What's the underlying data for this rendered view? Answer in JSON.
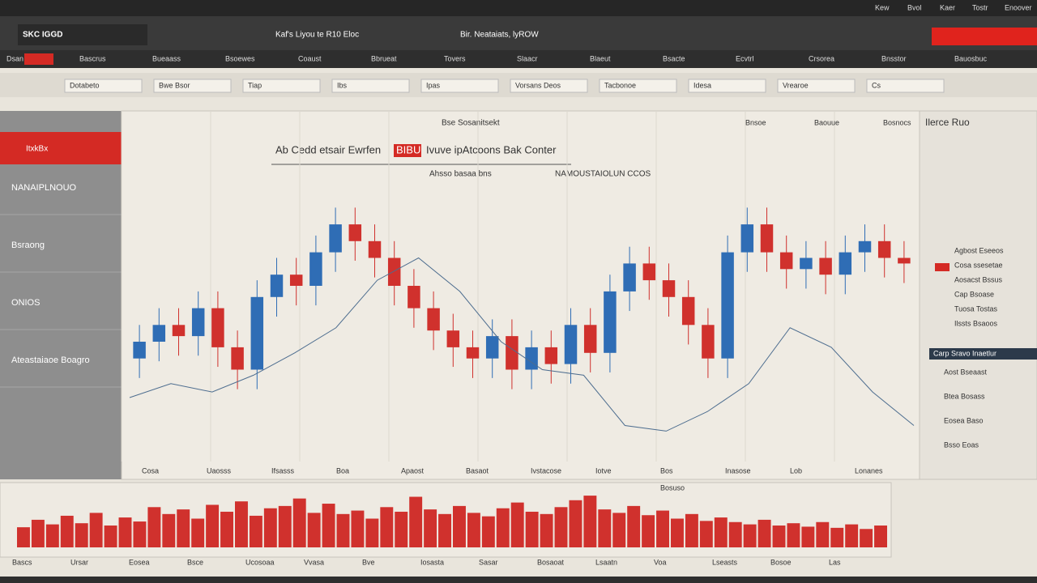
{
  "header": {
    "logo": "SKC IGGD",
    "title": "Kaf's Liyou te R10 Eloc",
    "subtitle": "Bir. Neataiats, lyROW",
    "top_links": [
      "Kew",
      "Bvol",
      "Kaer",
      "Tostr",
      "Enoover"
    ]
  },
  "nav": {
    "items": [
      "Dsan",
      "Bascrus",
      "Bueaass",
      "Bsoewes",
      "Coaust",
      "Bbrueat",
      "Tovers",
      "Slaacr",
      "Blaeut",
      "Bsacte",
      "Ecvtrl",
      "Crsorea",
      "Bnsstor",
      "Bauosbuc"
    ]
  },
  "toolbar": {
    "items": [
      "Dotabeto",
      "Bwe Bsor",
      "Tiap",
      "Ibs",
      "Ipas",
      "Vorsans Deos",
      "Tacbonoe",
      "Idesa",
      "Vrearoe",
      "Cs"
    ]
  },
  "sidebar": {
    "badge": "ItxkBx",
    "items": [
      "NANAIPLNOUO",
      "Bsraong",
      "ONIOS",
      "Ateastaiaoe Boagro"
    ]
  },
  "chart": {
    "top_label": "Bse Sosanitsekt",
    "title": "Ab Cedd etsair Ewrfen",
    "title_highlight": "BIBU",
    "title_rest": "Ivuve ipAtcoons Bak Conter",
    "subtitle_left": "Ahsso basaa bns",
    "subtitle_right": "NAMOUSTAIOLUN CCOS",
    "x_labels": [
      "Cosa",
      "Uaosss",
      "Ifsasss",
      "Boa",
      "Apaost",
      "Basaot",
      "Ivstacose",
      "Iotve",
      "Bos",
      "Inasose",
      "Lob",
      "Lonanes"
    ],
    "ylim": [
      0,
      100
    ],
    "colors": {
      "up": "#2f6db5",
      "down": "#d0312d",
      "line": "#4d6d8f",
      "volume": "#d0312d"
    },
    "candles": {
      "open": [
        34,
        40,
        46,
        42,
        52,
        38,
        30,
        56,
        64,
        60,
        72,
        82,
        76,
        70,
        60,
        52,
        44,
        38,
        34,
        42,
        30,
        38,
        32,
        46,
        36,
        58,
        68,
        62,
        56,
        46,
        34,
        72,
        82,
        72,
        66,
        70,
        64,
        72,
        76,
        70
      ],
      "close": [
        40,
        46,
        42,
        52,
        38,
        30,
        56,
        64,
        60,
        72,
        82,
        76,
        70,
        60,
        52,
        44,
        38,
        34,
        42,
        30,
        38,
        32,
        46,
        36,
        58,
        68,
        62,
        56,
        46,
        34,
        72,
        82,
        72,
        66,
        70,
        64,
        72,
        76,
        70,
        68
      ],
      "high": [
        46,
        52,
        52,
        58,
        58,
        44,
        62,
        70,
        70,
        78,
        88,
        88,
        82,
        76,
        66,
        58,
        50,
        44,
        48,
        48,
        44,
        44,
        52,
        52,
        64,
        74,
        74,
        68,
        62,
        52,
        78,
        88,
        88,
        78,
        76,
        76,
        78,
        82,
        82,
        76
      ],
      "low": [
        27,
        33,
        35,
        35,
        31,
        23,
        23,
        49,
        53,
        53,
        65,
        69,
        63,
        53,
        45,
        37,
        31,
        27,
        27,
        23,
        23,
        25,
        25,
        29,
        29,
        51,
        55,
        49,
        39,
        27,
        27,
        65,
        65,
        59,
        59,
        57,
        57,
        65,
        63,
        61
      ]
    },
    "line": [
      20,
      25,
      22,
      28,
      36,
      45,
      62,
      70,
      58,
      40,
      30,
      28,
      10,
      8,
      15,
      25,
      45,
      38,
      22,
      10
    ],
    "volume_label": "Bosuso",
    "volume": {
      "ylim": [
        0,
        100
      ],
      "values": [
        35,
        48,
        40,
        55,
        42,
        60,
        38,
        52,
        45,
        70,
        58,
        66,
        50,
        74,
        62,
        80,
        55,
        68,
        72,
        85,
        60,
        76,
        58,
        64,
        50,
        70,
        62,
        88,
        66,
        58,
        72,
        60,
        54,
        68,
        78,
        62,
        58,
        70,
        82,
        90,
        66,
        60,
        72,
        56,
        64,
        50,
        58,
        46,
        52,
        44,
        40,
        48,
        38,
        42,
        36,
        44,
        34,
        40,
        32,
        38
      ]
    },
    "bottom_labels": [
      "Bascs",
      "Ursar",
      "Eosea",
      "Bsce",
      "Ucosoaa",
      "Vvasa",
      "Bve",
      "Iosasta",
      "Sasar",
      "Bosaoat",
      "Lsaatn",
      "Voa",
      "Lseasts",
      "Bosoe",
      "Las"
    ]
  },
  "right_panel": {
    "title": "Ilerce Ruo",
    "header_items": [
      "Bnsoe",
      "Baouue",
      "Bosnocs"
    ],
    "items": [
      "Agbost Eseeos",
      "Cosa ssesetae",
      "Aosacst Bssus",
      "Cap Bsoase",
      "Tuosa Tostas",
      "Ilssts Bsaoos"
    ],
    "highlight": "Carp Sravo Inaetlur",
    "notes": [
      "Aost Bseaast",
      "Btea Bosass",
      "Eosea Baso",
      "Bsso Eoas"
    ]
  }
}
